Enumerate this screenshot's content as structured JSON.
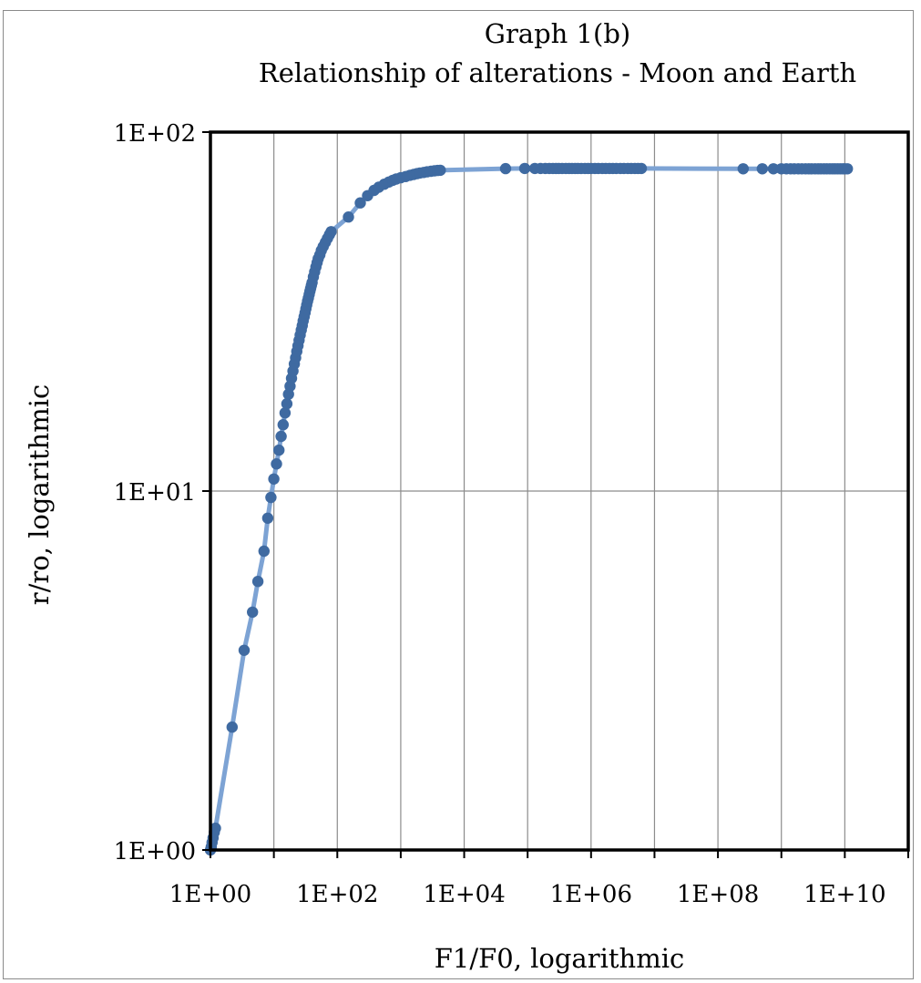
{
  "chart_data": {
    "type": "scatter",
    "title": "Graph 1(b)",
    "subtitle": "Relationship of alterations - Moon and Earth",
    "xlabel": "F1/F0, logarithmic",
    "ylabel": "r/ro, logarithmic",
    "x_scale": "log",
    "y_scale": "log",
    "xlim": [
      1,
      100000000000
    ],
    "ylim": [
      1,
      100
    ],
    "x_major_ticks": [
      1,
      100,
      10000,
      1000000,
      100000000,
      10000000000
    ],
    "x_tick_labels": [
      "1E+00",
      "1E+02",
      "1E+04",
      "1E+06",
      "1E+08",
      "1E+10"
    ],
    "y_tick_labels": [
      "1E+00",
      "1E+01",
      "1E+02"
    ],
    "grid": true,
    "legend": "none",
    "line_color": "#7da3d4",
    "marker_color": "#3f6aa1",
    "series": [
      {
        "points": [
          [
            1.0,
            1.0
          ],
          [
            1.03,
            1.02
          ],
          [
            1.06,
            1.05
          ],
          [
            1.1,
            1.08
          ],
          [
            1.15,
            1.12
          ],
          [
            1.2,
            1.15
          ],
          [
            2.2,
            2.2
          ],
          [
            3.4,
            3.6
          ],
          [
            4.6,
            4.6
          ],
          [
            5.6,
            5.6
          ],
          [
            7.0,
            6.8
          ],
          [
            8.0,
            8.4
          ],
          [
            9.0,
            9.6
          ],
          [
            10,
            10.8
          ],
          [
            11,
            11.9
          ],
          [
            12,
            13.0
          ],
          [
            13,
            14.2
          ],
          [
            14,
            15.3
          ],
          [
            15,
            16.5
          ],
          [
            16,
            17.5
          ],
          [
            17,
            18.6
          ],
          [
            18,
            19.6
          ],
          [
            19,
            20.6
          ],
          [
            20,
            21.6
          ],
          [
            21,
            22.6
          ],
          [
            22,
            23.5
          ],
          [
            23,
            24.5
          ],
          [
            24,
            25.4
          ],
          [
            25,
            26.3
          ],
          [
            26,
            27.2
          ],
          [
            27,
            28.1
          ],
          [
            28,
            28.9
          ],
          [
            29,
            29.8
          ],
          [
            30,
            30.6
          ],
          [
            31,
            31.4
          ],
          [
            32,
            32.2
          ],
          [
            33,
            33.0
          ],
          [
            34,
            33.8
          ],
          [
            35,
            34.5
          ],
          [
            36,
            35.3
          ],
          [
            37,
            36.0
          ],
          [
            38,
            36.7
          ],
          [
            39,
            37.4
          ],
          [
            40,
            38.1
          ],
          [
            42,
            39.5
          ],
          [
            44,
            40.8
          ],
          [
            46,
            42.1
          ],
          [
            48,
            43.3
          ],
          [
            50,
            44.4
          ],
          [
            53,
            45.5
          ],
          [
            56,
            46.8
          ],
          [
            60,
            48.0
          ],
          [
            65,
            49.3
          ],
          [
            70,
            50.6
          ],
          [
            75,
            51.8
          ],
          [
            80,
            52.8
          ],
          [
            150,
            58.0
          ],
          [
            230,
            63.5
          ],
          [
            300,
            66.5
          ],
          [
            380,
            68.8
          ],
          [
            450,
            70.2
          ],
          [
            550,
            71.6
          ],
          [
            650,
            72.6
          ],
          [
            750,
            73.4
          ],
          [
            850,
            74.0
          ],
          [
            1000,
            74.6
          ],
          [
            1200,
            75.2
          ],
          [
            1400,
            75.8
          ],
          [
            1600,
            76.2
          ],
          [
            1800,
            76.6
          ],
          [
            2000,
            76.9
          ],
          [
            2300,
            77.2
          ],
          [
            2600,
            77.5
          ],
          [
            3000,
            77.8
          ],
          [
            3400,
            78.0
          ],
          [
            3800,
            78.2
          ],
          [
            4200,
            78.3
          ],
          [
            45000,
            79.1
          ],
          [
            90000,
            79.2
          ],
          [
            130000,
            79.2
          ],
          [
            160000,
            79.2
          ],
          [
            190000,
            79.2
          ],
          [
            220000,
            79.2
          ],
          [
            250000,
            79.2
          ],
          [
            280000,
            79.2
          ],
          [
            310000,
            79.2
          ],
          [
            350000,
            79.2
          ],
          [
            400000,
            79.2
          ],
          [
            450000,
            79.2
          ],
          [
            500000,
            79.2
          ],
          [
            560000,
            79.2
          ],
          [
            620000,
            79.2
          ],
          [
            700000,
            79.2
          ],
          [
            800000,
            79.2
          ],
          [
            900000,
            79.2
          ],
          [
            1000000,
            79.2
          ],
          [
            1150000,
            79.2
          ],
          [
            1300000,
            79.2
          ],
          [
            1500000,
            79.2
          ],
          [
            1700000,
            79.2
          ],
          [
            1950000,
            79.2
          ],
          [
            2200000,
            79.2
          ],
          [
            2500000,
            79.2
          ],
          [
            2900000,
            79.2
          ],
          [
            3300000,
            79.2
          ],
          [
            3800000,
            79.2
          ],
          [
            4300000,
            79.2
          ],
          [
            4900000,
            79.2
          ],
          [
            5500000,
            79.2
          ],
          [
            6200000,
            79.2
          ],
          [
            250000000,
            79.0
          ],
          [
            500000000,
            79.0
          ],
          [
            750000000,
            79.0
          ],
          [
            1000000000,
            79.0
          ],
          [
            1200000000,
            79.0
          ],
          [
            1400000000,
            79.0
          ],
          [
            1600000000,
            79.0
          ],
          [
            1850000000,
            79.0
          ],
          [
            2100000000,
            79.0
          ],
          [
            2400000000,
            79.0
          ],
          [
            2700000000,
            79.0
          ],
          [
            3000000000,
            79.0
          ],
          [
            3400000000,
            79.0
          ],
          [
            3800000000,
            79.0
          ],
          [
            4200000000,
            79.0
          ],
          [
            4700000000,
            79.0
          ],
          [
            5200000000,
            79.0
          ],
          [
            5800000000,
            79.0
          ],
          [
            6400000000,
            79.0
          ],
          [
            7000000000,
            79.0
          ],
          [
            7700000000,
            79.0
          ],
          [
            8500000000,
            79.0
          ],
          [
            9300000000,
            79.0
          ],
          [
            10000000000,
            79.0
          ],
          [
            11000000000,
            79.0
          ]
        ]
      }
    ]
  }
}
